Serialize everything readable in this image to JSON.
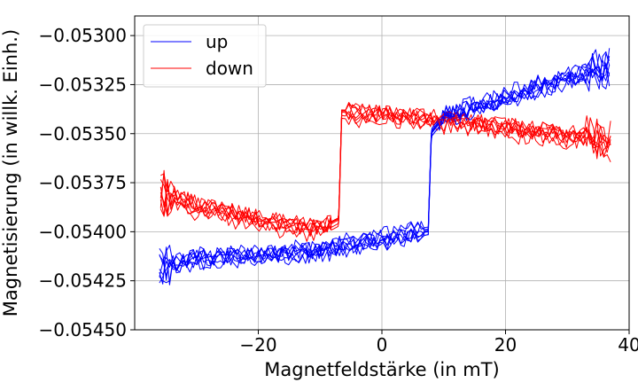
{
  "chart_data": {
    "type": "line",
    "xlabel": "Magnetfeldstärke (in  mT)",
    "ylabel": "Magnetisierung (in willk. Einh.)",
    "xlim": [
      -40,
      40
    ],
    "ylim": [
      -0.0545,
      -0.0529
    ],
    "x_ticks": [
      -20,
      0,
      20,
      40
    ],
    "x_tick_labels": [
      "−20",
      "0",
      "20",
      "40"
    ],
    "y_ticks": [
      -0.053,
      -0.05325,
      -0.0535,
      -0.05375,
      -0.054,
      -0.05425,
      -0.0545
    ],
    "y_tick_labels": [
      "−0.05300",
      "−0.05325",
      "−0.05350",
      "−0.05375",
      "−0.05400",
      "−0.05425",
      "−0.05450"
    ],
    "grid": true,
    "legend_position": "top-left",
    "sweeps": 8,
    "x_range": [
      -36,
      37
    ],
    "series": [
      {
        "name": "up",
        "color": "#0000ff",
        "branch": [
          {
            "x": -36,
            "y": -0.05418
          },
          {
            "x": -30,
            "y": -0.05414
          },
          {
            "x": -20,
            "y": -0.05412
          },
          {
            "x": -10,
            "y": -0.0541
          },
          {
            "x": 0,
            "y": -0.05404
          },
          {
            "x": 7.5,
            "y": -0.054
          },
          {
            "x": 8.0,
            "y": -0.0535
          },
          {
            "x": 10,
            "y": -0.05342
          },
          {
            "x": 20,
            "y": -0.05332
          },
          {
            "x": 30,
            "y": -0.05322
          },
          {
            "x": 37,
            "y": -0.05318
          }
        ]
      },
      {
        "name": "down",
        "color": "#ff0000",
        "branch": [
          {
            "x": 37,
            "y": -0.05355
          },
          {
            "x": 30,
            "y": -0.05352
          },
          {
            "x": 20,
            "y": -0.05348
          },
          {
            "x": 10,
            "y": -0.05344
          },
          {
            "x": 0,
            "y": -0.05342
          },
          {
            "x": -6.5,
            "y": -0.0534
          },
          {
            "x": -7.0,
            "y": -0.05395
          },
          {
            "x": -10,
            "y": -0.054
          },
          {
            "x": -20,
            "y": -0.05395
          },
          {
            "x": -30,
            "y": -0.05388
          },
          {
            "x": -36,
            "y": -0.0538
          }
        ]
      }
    ]
  }
}
